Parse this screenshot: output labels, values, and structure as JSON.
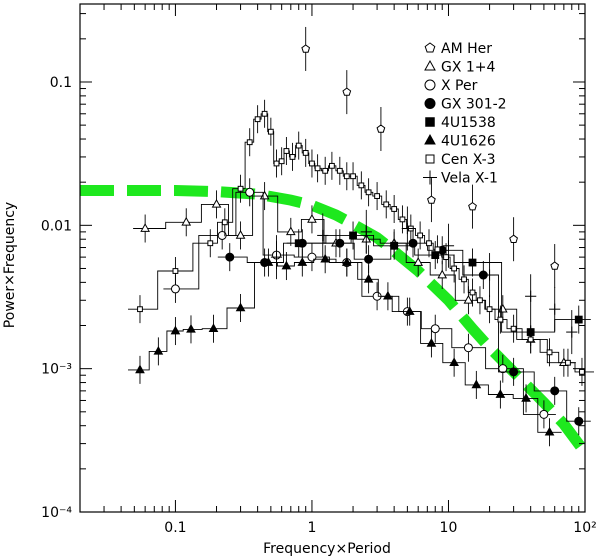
{
  "chart_data": {
    "type": "scatter",
    "title": "",
    "xlabel": "Frequency×Period",
    "ylabel": "Power×Frequency",
    "x_scale": "log",
    "y_scale": "log",
    "xlim": [
      0.02,
      100
    ],
    "ylim": [
      0.0001,
      0.35
    ],
    "grid": false,
    "legend_position": "top-right",
    "x_ticks": [
      {
        "value": 0.1,
        "label": "0.1"
      },
      {
        "value": 1,
        "label": "1"
      },
      {
        "value": 10,
        "label": "10"
      },
      {
        "value": 100,
        "label": "10²"
      }
    ],
    "y_ticks": [
      {
        "value": 0.0001,
        "label": "10⁻⁴"
      },
      {
        "value": 0.001,
        "label": "10⁻³"
      },
      {
        "value": 0.01,
        "label": "0.01"
      },
      {
        "value": 0.1,
        "label": "0.1"
      }
    ],
    "series": [
      {
        "name": "AM Her",
        "marker": "pentagon",
        "x": [
          0.9,
          1.8,
          3.2,
          7.5,
          15,
          30,
          60
        ],
        "y": [
          0.17,
          0.085,
          0.047,
          0.015,
          0.0135,
          0.008,
          0.0052
        ]
      },
      {
        "name": "GX 1+4",
        "marker": "triangle-open",
        "x": [
          0.06,
          0.12,
          0.2,
          0.3,
          0.45,
          0.7,
          1.0,
          1.5,
          2.5,
          4,
          6,
          9,
          14,
          25,
          40,
          70
        ],
        "y": [
          0.0095,
          0.0105,
          0.014,
          0.0085,
          0.016,
          0.009,
          0.011,
          0.0075,
          0.008,
          0.0075,
          0.0055,
          0.0045,
          0.003,
          0.0026,
          0.0016,
          0.0011
        ]
      },
      {
        "name": "X Per",
        "marker": "circle-open",
        "x": [
          0.1,
          0.22,
          0.35,
          0.55,
          1.0,
          1.8,
          3.0,
          5.0,
          8.0,
          14,
          25,
          50
        ],
        "y": [
          0.0036,
          0.0085,
          0.017,
          0.0062,
          0.006,
          0.0055,
          0.0032,
          0.0025,
          0.0019,
          0.0014,
          0.001,
          0.00048
        ]
      },
      {
        "name": "GX 301-2",
        "marker": "circle-filled",
        "x": [
          0.25,
          0.45,
          0.85,
          1.6,
          2.6,
          5.5,
          9,
          18,
          30,
          60,
          90
        ],
        "y": [
          0.006,
          0.0055,
          0.0075,
          0.0075,
          0.0058,
          0.0075,
          0.0067,
          0.0045,
          0.00095,
          0.0007,
          0.00043
        ]
      },
      {
        "name": "4U1538",
        "marker": "square-filled",
        "x": [
          0.8,
          2.0,
          4.0,
          8.0,
          15,
          40,
          90
        ],
        "y": [
          0.0075,
          0.0085,
          0.0072,
          0.0062,
          0.0055,
          0.0018,
          0.0022
        ]
      },
      {
        "name": "4U1626",
        "marker": "triangle-filled",
        "x": [
          0.055,
          0.075,
          0.1,
          0.13,
          0.19,
          0.3,
          0.48,
          0.65,
          0.85,
          1.25,
          1.8,
          2.6,
          3.6,
          5.2,
          7.5,
          11,
          16,
          24,
          37,
          55
        ],
        "y": [
          0.00098,
          0.00132,
          0.00183,
          0.00188,
          0.0019,
          0.00265,
          0.0055,
          0.0052,
          0.0055,
          0.0058,
          0.0055,
          0.0042,
          0.0032,
          0.0025,
          0.0015,
          0.0011,
          0.00077,
          0.00066,
          0.00062,
          0.00036
        ]
      },
      {
        "name": "Cen X-3",
        "marker": "square-open",
        "x": [
          0.055,
          0.1,
          0.18,
          0.23,
          0.3,
          0.35,
          0.4,
          0.45,
          0.5,
          0.55,
          0.6,
          0.65,
          0.72,
          0.8,
          0.9,
          1.0,
          1.1,
          1.25,
          1.4,
          1.6,
          1.8,
          2.0,
          2.3,
          2.6,
          3.0,
          3.5,
          4.0,
          4.6,
          5.3,
          6.2,
          7.2,
          8.3,
          9.6,
          11,
          13,
          15,
          17,
          20,
          24,
          30,
          40,
          55,
          75,
          95
        ],
        "y": [
          0.0026,
          0.0048,
          0.0075,
          0.0105,
          0.018,
          0.038,
          0.055,
          0.06,
          0.045,
          0.027,
          0.028,
          0.033,
          0.03,
          0.036,
          0.032,
          0.027,
          0.025,
          0.024,
          0.026,
          0.024,
          0.022,
          0.022,
          0.019,
          0.017,
          0.016,
          0.014,
          0.013,
          0.011,
          0.0095,
          0.0085,
          0.0075,
          0.0068,
          0.006,
          0.005,
          0.0042,
          0.0034,
          0.003,
          0.0026,
          0.0022,
          0.0019,
          0.0016,
          0.0013,
          0.0011,
          0.00095
        ]
      },
      {
        "name": "Vela X-1",
        "marker": "cross",
        "x": [
          0.55,
          1.2,
          2.5,
          5,
          10,
          20,
          40,
          60,
          80
        ],
        "y": [
          0.006,
          0.0085,
          0.009,
          0.0095,
          0.0072,
          0.0045,
          0.0032,
          0.0026,
          0.0018
        ]
      }
    ],
    "model_curve": {
      "color": "#1ee81e",
      "style": "dashed",
      "x": [
        0.02,
        0.05,
        0.1,
        0.2,
        0.4,
        0.7,
        1.0,
        1.5,
        2.0,
        3.0,
        4.0,
        6.0,
        10,
        15,
        20,
        30,
        50,
        70,
        100
      ],
      "y": [
        0.0175,
        0.0175,
        0.0175,
        0.0172,
        0.0165,
        0.015,
        0.0138,
        0.0118,
        0.0102,
        0.0082,
        0.0066,
        0.0048,
        0.003,
        0.0019,
        0.0014,
        0.00095,
        0.00058,
        0.00041,
        0.00026
      ]
    }
  }
}
